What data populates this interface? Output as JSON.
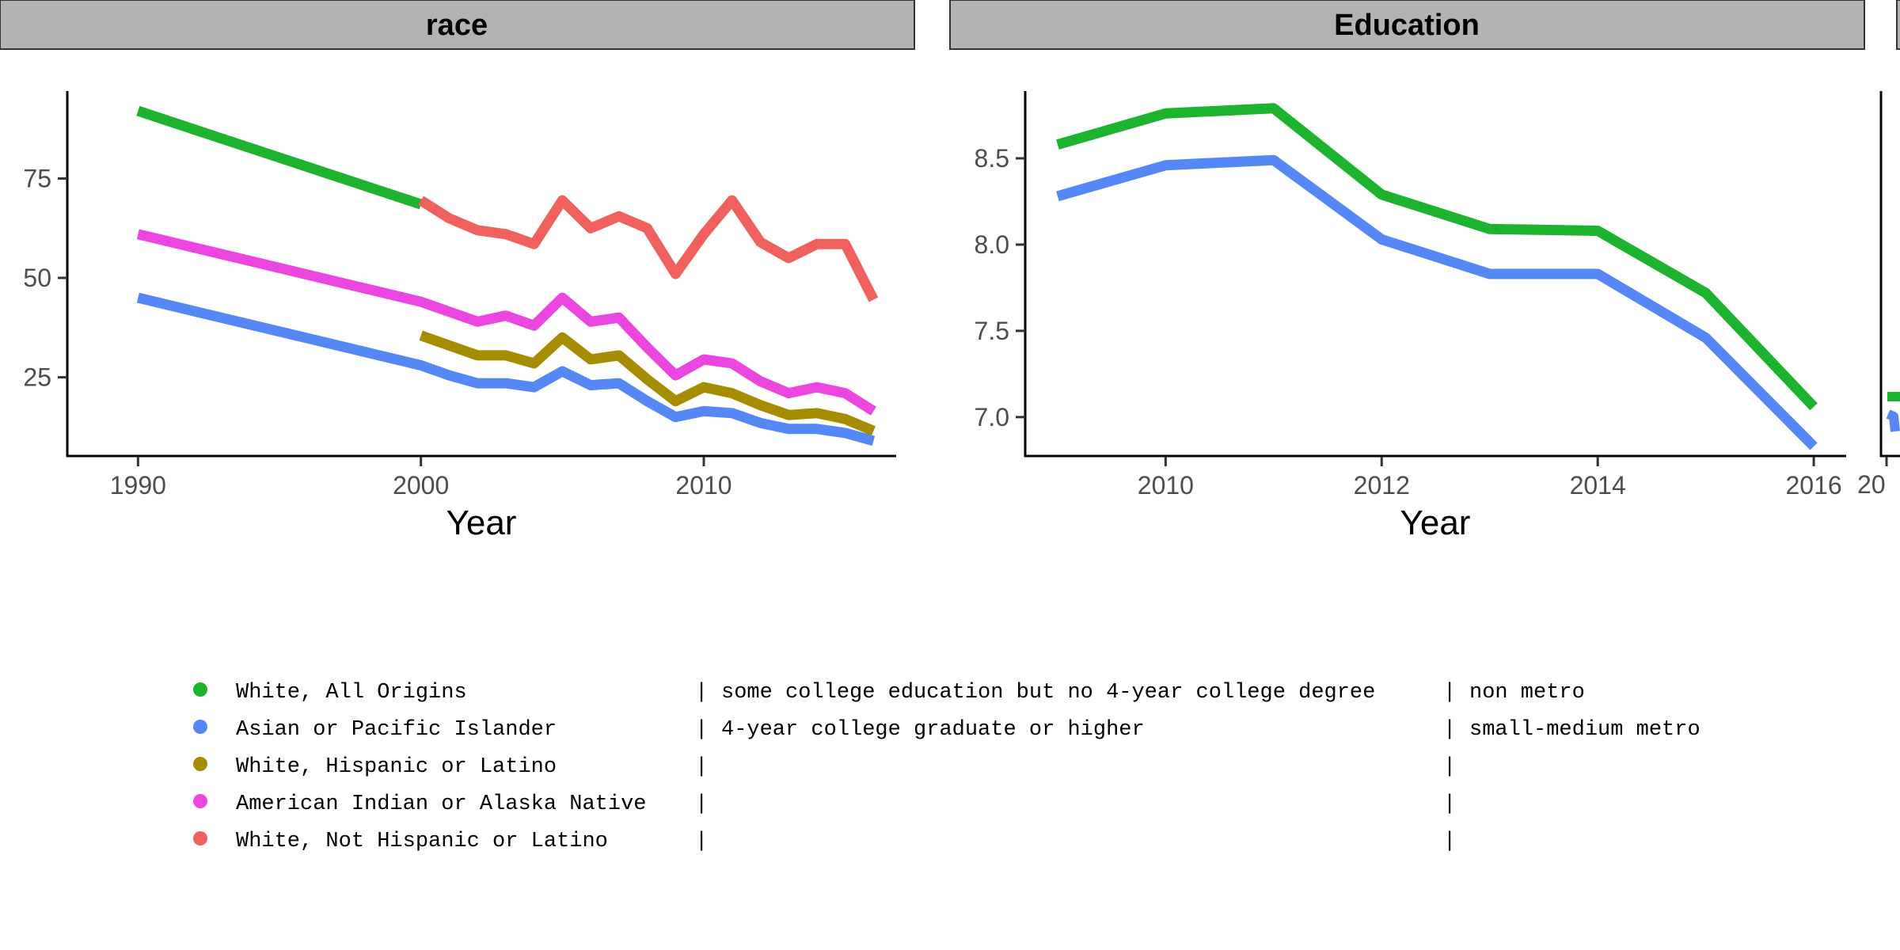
{
  "colors": {
    "White, All Origins": "#1db32e",
    "Asian or Pacific Islander": "#5587f7",
    "White, Hispanic or Latino": "#a68d00",
    "American Indian or Alaska Native": "#ec46e0",
    "White, Not Hispanic or Latino": "#f0605d",
    "strip_fill": "#b3b3b3"
  },
  "chart_data": [
    {
      "type": "line",
      "title": "race",
      "xlabel": "Year",
      "ylabel": "",
      "xlim": [
        1987.5,
        2016.8
      ],
      "ylim": [
        5,
        97
      ],
      "xticks": [
        1990,
        2000,
        2010
      ],
      "yticks": [
        25,
        50,
        75
      ],
      "grid": false,
      "series": [
        {
          "name": "White, All Origins",
          "x": [
            1990,
            2000
          ],
          "y": [
            92,
            68.5
          ]
        },
        {
          "name": "White, Not Hispanic or Latino",
          "x": [
            2000,
            2001,
            2002,
            2003,
            2004,
            2005,
            2006,
            2007,
            2008,
            2009,
            2010,
            2011,
            2012,
            2013,
            2014,
            2015,
            2016
          ],
          "y": [
            69.5,
            65,
            62,
            61,
            58.5,
            69.5,
            62.5,
            65.5,
            62.5,
            51,
            61,
            69.5,
            59,
            55,
            58.5,
            58.5,
            44.5
          ]
        },
        {
          "name": "American Indian or Alaska Native",
          "x": [
            1990,
            2000,
            2001,
            2002,
            2003,
            2004,
            2005,
            2006,
            2007,
            2008,
            2009,
            2010,
            2011,
            2012,
            2013,
            2014,
            2015,
            2016
          ],
          "y": [
            61,
            44,
            41.5,
            39,
            40.5,
            38,
            45,
            39,
            40,
            32.5,
            25.5,
            29.5,
            28.5,
            24,
            21,
            22.5,
            21,
            16.5
          ]
        },
        {
          "name": "White, Hispanic or Latino",
          "x": [
            2000,
            2001,
            2002,
            2003,
            2004,
            2005,
            2006,
            2007,
            2008,
            2009,
            2010,
            2011,
            2012,
            2013,
            2014,
            2015,
            2016
          ],
          "y": [
            35.5,
            33,
            30.5,
            30.5,
            28.5,
            35,
            29.5,
            30.5,
            24.5,
            19,
            22.5,
            21,
            18,
            15.5,
            16,
            14.5,
            11.5
          ]
        },
        {
          "name": "Asian or Pacific Islander",
          "x": [
            1990,
            2000,
            2001,
            2002,
            2003,
            2004,
            2005,
            2006,
            2007,
            2008,
            2009,
            2010,
            2011,
            2012,
            2013,
            2014,
            2015,
            2016
          ],
          "y": [
            45,
            28,
            25.5,
            23.5,
            23.5,
            22.5,
            26.5,
            23,
            23.5,
            19,
            15,
            16.5,
            16,
            13.5,
            12,
            12,
            11,
            9
          ]
        }
      ]
    },
    {
      "type": "line",
      "title": "Education",
      "xlabel": "Year",
      "ylabel": "",
      "xlim": [
        2008.7,
        2016.3
      ],
      "ylim": [
        6.77,
        8.89
      ],
      "xticks": [
        2010,
        2012,
        2014,
        2016
      ],
      "yticks": [
        7.0,
        7.5,
        8.0,
        8.5
      ],
      "ytick_labels": [
        "7.0",
        "7.5",
        "8.0",
        "8.5"
      ],
      "grid": false,
      "series": [
        {
          "name": "some college education but no 4-year college degree",
          "x": [
            2009,
            2010,
            2011,
            2012,
            2013,
            2014,
            2015,
            2016
          ],
          "y": [
            8.58,
            8.76,
            8.79,
            8.29,
            8.09,
            8.08,
            7.72,
            7.06
          ]
        },
        {
          "name": "4-year college graduate or higher",
          "x": [
            2009,
            2010,
            2011,
            2012,
            2013,
            2014,
            2015,
            2016
          ],
          "y": [
            8.28,
            8.46,
            8.49,
            8.03,
            7.83,
            7.83,
            7.46,
            6.83
          ]
        }
      ]
    },
    {
      "type": "line",
      "title": "",
      "xlabel": "",
      "xticks_visible_text": "20",
      "series": [
        {
          "name": "non metro",
          "y_partial": [
            7.06
          ]
        },
        {
          "name": "small-medium metro",
          "y_partial": [
            6.97,
            6.86
          ]
        }
      ]
    }
  ],
  "legend": {
    "rows": [
      {
        "race": "White, All Origins",
        "education": "some college education but no 4-year college degree",
        "metro": "non metro",
        "color": "#1db32e"
      },
      {
        "race": "Asian or Pacific Islander",
        "education": "4-year college graduate or higher",
        "metro": "small-medium metro",
        "color": "#5587f7"
      },
      {
        "race": "White, Hispanic or Latino",
        "education": "",
        "metro": "",
        "color": "#a68d00"
      },
      {
        "race": "American Indian or Alaska Native",
        "education": "",
        "metro": "",
        "color": "#ec46e0"
      },
      {
        "race": "White, Not Hispanic or Latino",
        "education": "",
        "metro": "",
        "color": "#f0605d"
      }
    ],
    "separator": "|"
  }
}
